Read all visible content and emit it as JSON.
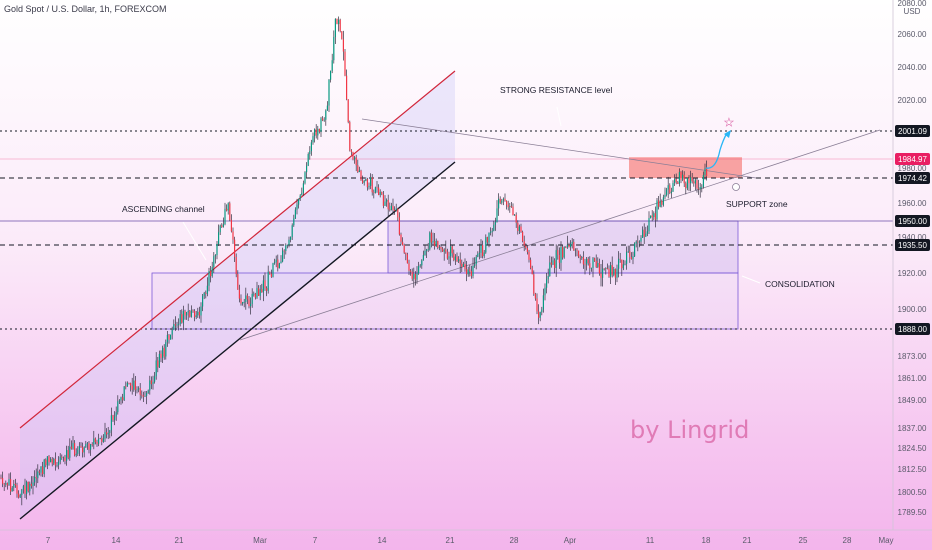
{
  "title": "Gold Spot / U.S. Dollar, 1h, FOREXCOM",
  "watermark": "by Lingrid",
  "chart_data": {
    "type": "candlestick",
    "currency": "USD",
    "y_axis": {
      "ticks": [
        2080,
        2060,
        2040,
        2020,
        1980,
        1960,
        1940,
        1920,
        1900,
        1873,
        1861,
        1849,
        1837,
        1824.5,
        1812.5,
        1800.5,
        1789.5
      ],
      "tick_labels": [
        "2080.00",
        "2060.00",
        "2040.00",
        "2020.00",
        "1980.00",
        "1960.00",
        "1940.00",
        "1920.00",
        "1900.00",
        "1873.00",
        "1861.00",
        "1849.00",
        "1837.00",
        "1824.50",
        "1812.50",
        "1800.50",
        "1789.50"
      ]
    },
    "x_axis": {
      "tick_labels": [
        "7",
        "14",
        "21",
        "Mar",
        "7",
        "14",
        "21",
        "28",
        "Apr",
        "11",
        "18",
        "21",
        "25",
        "28",
        "May"
      ],
      "tick_px_hint": "layout"
    },
    "price_labels": [
      {
        "value": 2001.09,
        "text": "2001.09",
        "color": "#131722",
        "style": "dark"
      },
      {
        "value": 1984.97,
        "text": "1984.97",
        "color": "#e91e63",
        "style": "pink"
      },
      {
        "value": 1974.42,
        "text": "1974.42",
        "color": "#131722",
        "style": "dark"
      },
      {
        "value": 1950.0,
        "text": "1950.00",
        "color": "#131722",
        "style": "dark"
      },
      {
        "value": 1935.5,
        "text": "1935.50",
        "color": "#131722",
        "style": "dark"
      },
      {
        "value": 1888.0,
        "text": "1888.00",
        "color": "#131722",
        "style": "dark"
      }
    ],
    "horizontal_levels": [
      {
        "value": 2001.09,
        "style": "dotted"
      },
      {
        "value": 1974.42,
        "style": "dashed"
      },
      {
        "value": 1950.0,
        "style": "solid-thin"
      },
      {
        "value": 1935.5,
        "style": "dashed"
      },
      {
        "value": 1888.0,
        "style": "dotted"
      }
    ],
    "annotations": [
      {
        "text": "STRONG RESISTANCE level"
      },
      {
        "text": "ASCENDING channel"
      },
      {
        "text": "SUPPORT zone"
      },
      {
        "text": "CONSOLIDATION"
      }
    ],
    "colors": {
      "up": "#089981",
      "down": "#f23645",
      "wick": "#2a2a3a",
      "accent": "#e91e63",
      "resistance": "#f44336",
      "channel_fill": "#c9c6f5",
      "zone_stroke": "#7b5ad8",
      "arrow": "#29b6f6"
    }
  }
}
